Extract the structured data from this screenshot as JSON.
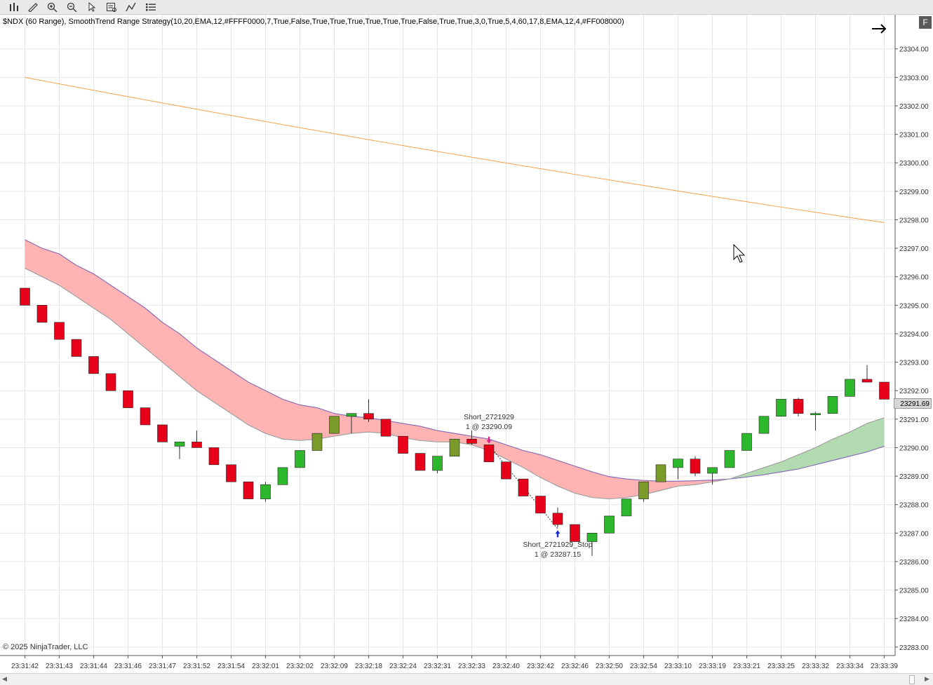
{
  "toolbar": {
    "buttons": [
      "bar-type-icon",
      "draw-tool-icon",
      "zoom-in-icon",
      "zoom-out-icon",
      "pointer-icon",
      "data-box-icon",
      "indicators-icon",
      "strategies-icon"
    ]
  },
  "header": {
    "title": "$NDX (60 Range), SmoothTrend Range Strategy(10,20,EMA,12,#FFFF0000,7,True,False,True,True,True,True,True,True,False,True,True,3,0,True,5,4,60,17,8,EMA,12,4,#FF008000)",
    "f_label": "F"
  },
  "footer": {
    "copyright": "© 2025 NinjaTrader, LLC"
  },
  "price_marker": "23291.69",
  "chart_data": {
    "type": "candlestick",
    "instrument": "$NDX (60 Range)",
    "ylim": [
      23282.7,
      23305.2
    ],
    "y_ticks": [
      23283,
      23284,
      23285,
      23286,
      23287,
      23288,
      23289,
      23290,
      23291,
      23292,
      23293,
      23294,
      23295,
      23296,
      23297,
      23298,
      23299,
      23300,
      23301,
      23302,
      23303,
      23304
    ],
    "x_tick_labels": [
      "23:31:42",
      "23:31:43",
      "23:31:44",
      "23:31:46",
      "23:31:47",
      "23:31:52",
      "23:31:54",
      "23:32:01",
      "23:32:02",
      "23:32:09",
      "23:32:18",
      "23:32:24",
      "23:32:31",
      "23:32:33",
      "23:32:40",
      "23:32:42",
      "23:32:46",
      "23:32:50",
      "23:32:54",
      "23:33:10",
      "23:33:19",
      "23:33:21",
      "23:33:25",
      "23:33:32",
      "23:33:34",
      "23:33:39"
    ],
    "candles": [
      {
        "o": 23295.6,
        "h": 23295.6,
        "l": 23295.0,
        "c": 23295.0
      },
      {
        "o": 23295.0,
        "h": 23295.0,
        "l": 23294.4,
        "c": 23294.4
      },
      {
        "o": 23294.4,
        "h": 23294.4,
        "l": 23293.8,
        "c": 23293.8
      },
      {
        "o": 23293.8,
        "h": 23293.8,
        "l": 23293.2,
        "c": 23293.2
      },
      {
        "o": 23293.2,
        "h": 23293.2,
        "l": 23292.6,
        "c": 23292.6
      },
      {
        "o": 23292.6,
        "h": 23292.6,
        "l": 23292.0,
        "c": 23292.0
      },
      {
        "o": 23292.0,
        "h": 23292.0,
        "l": 23291.4,
        "c": 23291.4
      },
      {
        "o": 23291.4,
        "h": 23291.4,
        "l": 23290.8,
        "c": 23290.8
      },
      {
        "o": 23290.8,
        "h": 23290.8,
        "l": 23290.2,
        "c": 23290.2
      },
      {
        "o": 23290.05,
        "h": 23290.2,
        "l": 23289.6,
        "c": 23290.2
      },
      {
        "o": 23290.2,
        "h": 23290.6,
        "l": 23290.0,
        "c": 23290.0
      },
      {
        "o": 23290.0,
        "h": 23290.0,
        "l": 23289.4,
        "c": 23289.4
      },
      {
        "o": 23289.4,
        "h": 23289.4,
        "l": 23288.8,
        "c": 23288.8
      },
      {
        "o": 23288.8,
        "h": 23288.8,
        "l": 23288.2,
        "c": 23288.2
      },
      {
        "o": 23288.2,
        "h": 23288.8,
        "l": 23288.1,
        "c": 23288.7
      },
      {
        "o": 23288.7,
        "h": 23289.3,
        "l": 23288.7,
        "c": 23289.3
      },
      {
        "o": 23289.3,
        "h": 23289.9,
        "l": 23289.3,
        "c": 23289.9
      },
      {
        "o": 23289.9,
        "h": 23290.5,
        "l": 23289.9,
        "c": 23290.5
      },
      {
        "o": 23290.5,
        "h": 23291.1,
        "l": 23290.5,
        "c": 23291.1
      },
      {
        "o": 23291.1,
        "h": 23291.15,
        "l": 23290.5,
        "c": 23291.2
      },
      {
        "o": 23291.2,
        "h": 23291.7,
        "l": 23290.9,
        "c": 23291.0
      },
      {
        "o": 23291.0,
        "h": 23291.0,
        "l": 23290.4,
        "c": 23290.4
      },
      {
        "o": 23290.4,
        "h": 23290.4,
        "l": 23289.8,
        "c": 23289.8
      },
      {
        "o": 23289.8,
        "h": 23289.8,
        "l": 23289.2,
        "c": 23289.2
      },
      {
        "o": 23289.2,
        "h": 23289.7,
        "l": 23289.1,
        "c": 23289.7
      },
      {
        "o": 23289.7,
        "h": 23290.3,
        "l": 23289.7,
        "c": 23290.3
      },
      {
        "o": 23290.3,
        "h": 23290.6,
        "l": 23290.1,
        "c": 23290.15
      },
      {
        "o": 23290.1,
        "h": 23290.1,
        "l": 23289.5,
        "c": 23289.5
      },
      {
        "o": 23289.5,
        "h": 23289.5,
        "l": 23288.9,
        "c": 23288.9
      },
      {
        "o": 23288.9,
        "h": 23288.9,
        "l": 23288.3,
        "c": 23288.3
      },
      {
        "o": 23288.3,
        "h": 23288.3,
        "l": 23287.7,
        "c": 23287.7
      },
      {
        "o": 23287.7,
        "h": 23287.9,
        "l": 23287.2,
        "c": 23287.3
      },
      {
        "o": 23287.3,
        "h": 23287.3,
        "l": 23286.7,
        "c": 23286.7
      },
      {
        "o": 23286.7,
        "h": 23287.0,
        "l": 23286.2,
        "c": 23287.0
      },
      {
        "o": 23287.0,
        "h": 23287.6,
        "l": 23287.0,
        "c": 23287.6
      },
      {
        "o": 23287.6,
        "h": 23288.2,
        "l": 23287.6,
        "c": 23288.2
      },
      {
        "o": 23288.2,
        "h": 23288.8,
        "l": 23288.1,
        "c": 23288.8
      },
      {
        "o": 23288.8,
        "h": 23289.4,
        "l": 23288.8,
        "c": 23289.4
      },
      {
        "o": 23289.3,
        "h": 23289.6,
        "l": 23288.9,
        "c": 23289.6
      },
      {
        "o": 23289.6,
        "h": 23289.7,
        "l": 23289.0,
        "c": 23289.1
      },
      {
        "o": 23289.1,
        "h": 23289.3,
        "l": 23288.7,
        "c": 23289.3
      },
      {
        "o": 23289.3,
        "h": 23289.9,
        "l": 23289.3,
        "c": 23289.9
      },
      {
        "o": 23289.9,
        "h": 23290.5,
        "l": 23289.9,
        "c": 23290.5
      },
      {
        "o": 23290.5,
        "h": 23291.1,
        "l": 23290.5,
        "c": 23291.1
      },
      {
        "o": 23291.1,
        "h": 23291.7,
        "l": 23291.1,
        "c": 23291.7
      },
      {
        "o": 23291.7,
        "h": 23291.75,
        "l": 23291.1,
        "c": 23291.2
      },
      {
        "o": 23291.2,
        "h": 23291.25,
        "l": 23290.6,
        "c": 23291.2
      },
      {
        "o": 23291.2,
        "h": 23291.8,
        "l": 23291.2,
        "c": 23291.8
      },
      {
        "o": 23291.8,
        "h": 23292.4,
        "l": 23291.8,
        "c": 23292.4
      },
      {
        "o": 23292.4,
        "h": 23292.9,
        "l": 23292.3,
        "c": 23292.3
      },
      {
        "o": 23292.3,
        "h": 23292.3,
        "l": 23291.7,
        "c": 23291.7
      }
    ],
    "ema_slow_line": {
      "start": 23303.0,
      "end": 23297.9
    },
    "band_top": [
      23297.3,
      23297.0,
      23296.8,
      23296.4,
      23296.1,
      23295.7,
      23295.3,
      23294.9,
      23294.4,
      23294.0,
      23293.5,
      23293.1,
      23292.7,
      23292.3,
      23292.0,
      23291.7,
      23291.5,
      23291.4,
      23291.2,
      23291.1,
      23291.05,
      23290.95,
      23290.85,
      23290.75,
      23290.6,
      23290.5,
      23290.4,
      23290.3,
      23290.1,
      23289.9,
      23289.75,
      23289.55,
      23289.35,
      23289.15,
      23288.98,
      23288.9,
      23288.85,
      23288.82,
      23288.82,
      23288.84,
      23288.86,
      23288.9,
      23288.97,
      23289.05,
      23289.15,
      23289.25,
      23289.4,
      23289.55,
      23289.7,
      23289.85,
      23290.05
    ],
    "band_bottom": [
      23296.3,
      23296.0,
      23295.7,
      23295.3,
      23294.9,
      23294.5,
      23294.0,
      23293.5,
      23293.0,
      23292.5,
      23292.0,
      23291.6,
      23291.2,
      23290.8,
      23290.5,
      23290.3,
      23290.25,
      23290.3,
      23290.4,
      23290.5,
      23290.55,
      23290.5,
      23290.35,
      23290.25,
      23290.2,
      23290.2,
      23290.1,
      23289.9,
      23289.6,
      23289.3,
      23288.95,
      23288.65,
      23288.4,
      23288.25,
      23288.2,
      23288.25,
      23288.35,
      23288.5,
      23288.65,
      23288.7,
      23288.8,
      23288.9,
      23289.1,
      23289.3,
      23289.5,
      23289.75,
      23290.0,
      23290.3,
      23290.55,
      23290.85,
      23291.05
    ],
    "band_green_start_index": 41,
    "trades": [
      {
        "type": "entry",
        "index": 27,
        "label": "Short_2721929",
        "detail": "1 @ 23290.09",
        "price": 23290.09
      },
      {
        "type": "exit",
        "index": 31,
        "label": "Short_2721929_Stop",
        "detail": "1 @ 23287.15",
        "price": 23287.15
      }
    ],
    "colors": {
      "up": "#2db72d",
      "down": "#e8001a",
      "band_bear": "#ffb3b3",
      "band_bull": "#b2dbb2",
      "ema_line": "#f5a34b",
      "band_top_line": "#8a6fb8",
      "band_bottom_line": "#a0a0a0",
      "grid": "#e6e6e6"
    }
  }
}
